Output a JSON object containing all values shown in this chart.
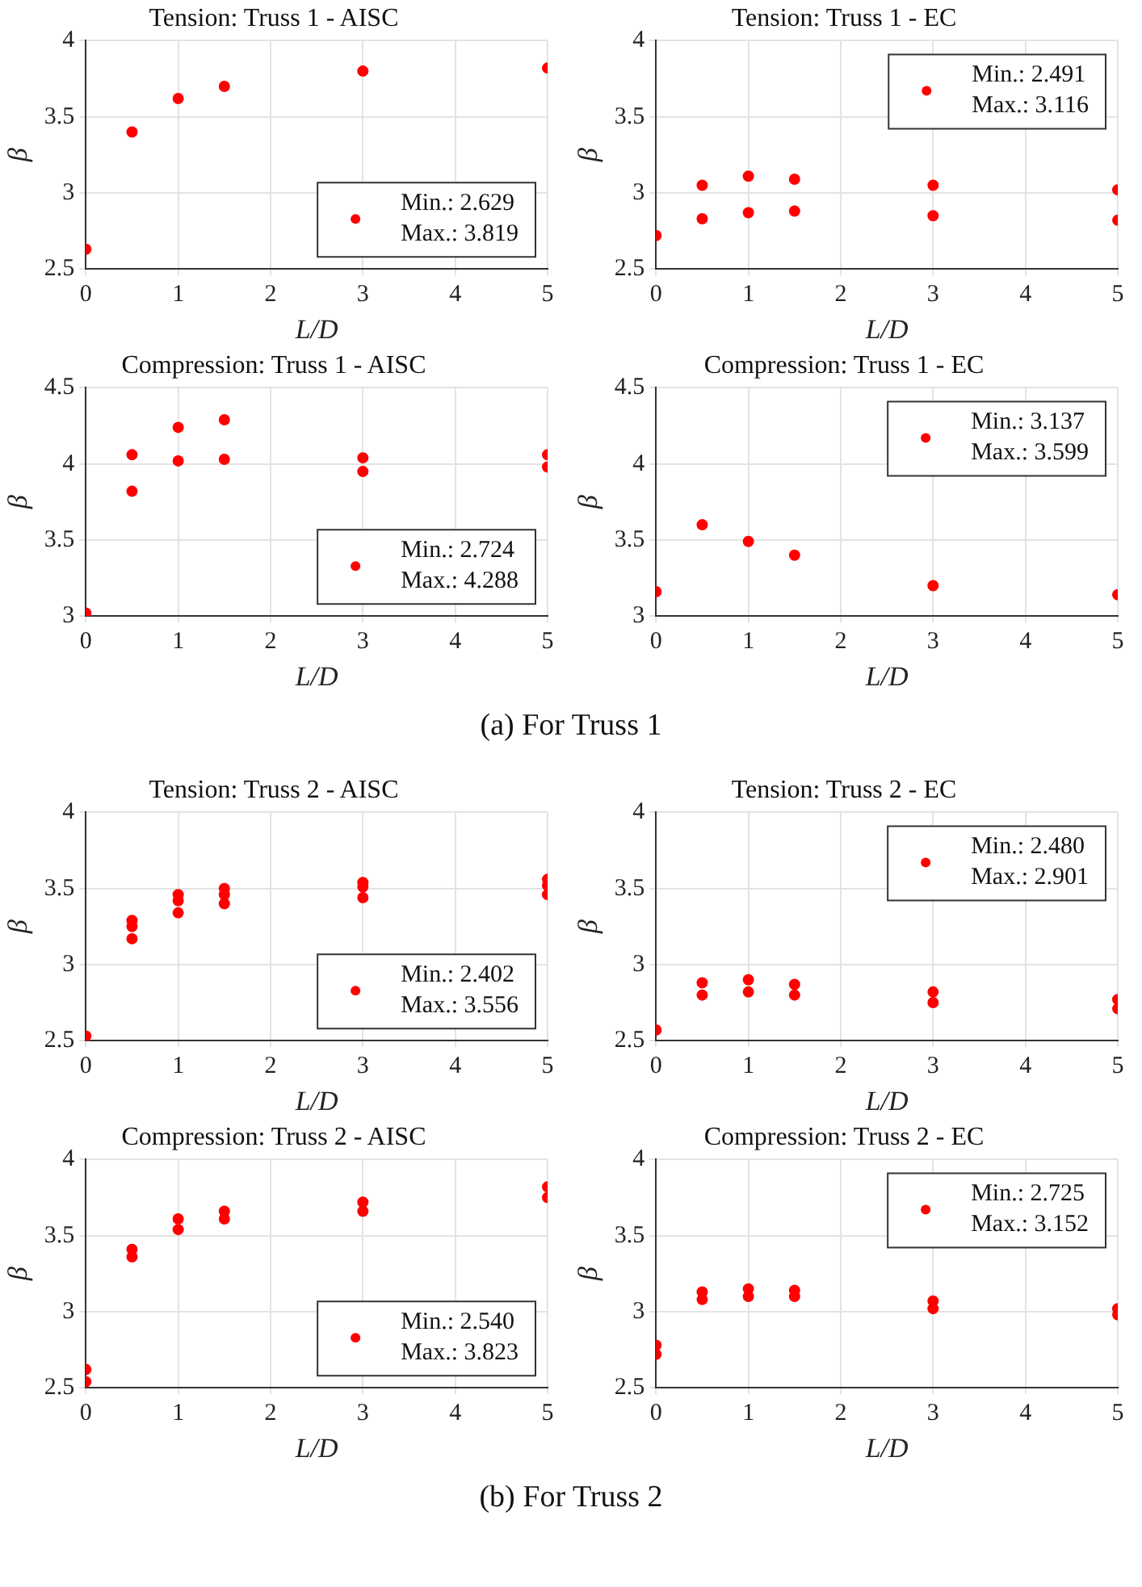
{
  "chart_data": [
    {
      "type": "scatter",
      "title": "Tension: Truss 1 - AISC",
      "xlabel": "L/D",
      "ylabel": "β",
      "xlim": [
        0,
        5
      ],
      "xticks": [
        0,
        1,
        2,
        3,
        4,
        5
      ],
      "ylim": [
        2.5,
        4
      ],
      "yticks": [
        2.5,
        3,
        3.5,
        4
      ],
      "grid": true,
      "marker": "circle",
      "legend": "bottom right",
      "series": [
        {
          "name": "Min.: 2.629\nMax.: 3.819",
          "color": "#ff0000",
          "x": [
            0,
            0.5,
            1,
            1.5,
            3,
            5
          ],
          "values": [
            2.63,
            3.4,
            3.62,
            3.7,
            3.8,
            3.82
          ]
        }
      ]
    },
    {
      "type": "scatter",
      "title": "Tension: Truss 1 - EC",
      "xlabel": "L/D",
      "ylabel": "β",
      "xlim": [
        0,
        5
      ],
      "xticks": [
        0,
        1,
        2,
        3,
        4,
        5
      ],
      "ylim": [
        2.5,
        4
      ],
      "yticks": [
        2.5,
        3,
        3.5,
        4
      ],
      "grid": true,
      "marker": "circle",
      "legend": "top right",
      "series": [
        {
          "name": "Min.: 2.491\nMax.: 3.116",
          "color": "#ff0000",
          "x": [
            0,
            0.5,
            0.5,
            1,
            1,
            1.5,
            1.5,
            3,
            3,
            5,
            5
          ],
          "values": [
            2.72,
            3.05,
            2.83,
            3.11,
            2.87,
            3.09,
            2.88,
            3.05,
            2.85,
            3.02,
            2.82
          ]
        }
      ]
    },
    {
      "type": "scatter",
      "title": "Compression: Truss 1 - AISC",
      "xlabel": "L/D",
      "ylabel": "β",
      "xlim": [
        0,
        5
      ],
      "xticks": [
        0,
        1,
        2,
        3,
        4,
        5
      ],
      "ylim": [
        3,
        4.5
      ],
      "yticks": [
        3,
        3.5,
        4,
        4.5
      ],
      "grid": true,
      "marker": "circle",
      "legend": "bottom right",
      "series": [
        {
          "name": "Min.: 2.724\nMax.: 4.288",
          "color": "#ff0000",
          "x": [
            0,
            0.5,
            0.5,
            1,
            1,
            1.5,
            1.5,
            3,
            3,
            5,
            5
          ],
          "values": [
            3.02,
            4.06,
            3.82,
            4.24,
            4.02,
            4.29,
            4.03,
            4.04,
            3.95,
            4.06,
            3.98
          ]
        }
      ]
    },
    {
      "type": "scatter",
      "title": "Compression: Truss 1 - EC",
      "xlabel": "L/D",
      "ylabel": "β",
      "xlim": [
        0,
        5
      ],
      "xticks": [
        0,
        1,
        2,
        3,
        4,
        5
      ],
      "ylim": [
        3,
        4.5
      ],
      "yticks": [
        3,
        3.5,
        4,
        4.5
      ],
      "grid": true,
      "marker": "circle",
      "legend": "top right",
      "annotations": [
        "(a)  For Truss 1"
      ],
      "series": [
        {
          "name": "Min.: 3.137\nMax.: 3.599",
          "color": "#ff0000",
          "x": [
            0,
            0.5,
            1,
            1.5,
            3,
            5
          ],
          "values": [
            3.16,
            3.6,
            3.49,
            3.4,
            3.2,
            3.14
          ]
        }
      ]
    },
    {
      "type": "scatter",
      "title": "Tension: Truss 2 - AISC",
      "xlabel": "L/D",
      "ylabel": "β",
      "xlim": [
        0,
        5
      ],
      "xticks": [
        0,
        1,
        2,
        3,
        4,
        5
      ],
      "ylim": [
        2.5,
        4
      ],
      "yticks": [
        2.5,
        3,
        3.5,
        4
      ],
      "grid": true,
      "marker": "circle",
      "legend": "bottom right",
      "series": [
        {
          "name": "Min.: 2.402\nMax.: 3.556",
          "color": "#ff0000",
          "x": [
            0,
            0.5,
            0.5,
            0.5,
            1,
            1,
            1,
            1.5,
            1.5,
            1.5,
            3,
            3,
            3,
            5,
            5,
            5
          ],
          "values": [
            2.53,
            3.29,
            3.25,
            3.17,
            3.46,
            3.42,
            3.34,
            3.5,
            3.46,
            3.4,
            3.54,
            3.51,
            3.44,
            3.56,
            3.52,
            3.46
          ]
        }
      ]
    },
    {
      "type": "scatter",
      "title": "Tension: Truss 2 - EC",
      "xlabel": "L/D",
      "ylabel": "β",
      "xlim": [
        0,
        5
      ],
      "xticks": [
        0,
        1,
        2,
        3,
        4,
        5
      ],
      "ylim": [
        2.5,
        4
      ],
      "yticks": [
        2.5,
        3,
        3.5,
        4
      ],
      "grid": true,
      "marker": "circle",
      "legend": "top right",
      "series": [
        {
          "name": "Min.: 2.480\nMax.: 2.901",
          "color": "#ff0000",
          "x": [
            0,
            0.5,
            0.5,
            1,
            1,
            1.5,
            1.5,
            3,
            3,
            5,
            5
          ],
          "values": [
            2.57,
            2.88,
            2.8,
            2.9,
            2.82,
            2.87,
            2.8,
            2.82,
            2.75,
            2.77,
            2.71
          ]
        }
      ]
    },
    {
      "type": "scatter",
      "title": "Compression: Truss 2 - AISC",
      "xlabel": "L/D",
      "ylabel": "β",
      "xlim": [
        0,
        5
      ],
      "xticks": [
        0,
        1,
        2,
        3,
        4,
        5
      ],
      "ylim": [
        2.5,
        4
      ],
      "yticks": [
        2.5,
        3,
        3.5,
        4
      ],
      "grid": true,
      "marker": "circle",
      "legend": "bottom right",
      "series": [
        {
          "name": "Min.: 2.540\nMax.: 3.823",
          "color": "#ff0000",
          "x": [
            0,
            0,
            0.5,
            0.5,
            1,
            1,
            1.5,
            1.5,
            3,
            3,
            5,
            5
          ],
          "values": [
            2.62,
            2.54,
            3.41,
            3.36,
            3.61,
            3.54,
            3.66,
            3.61,
            3.72,
            3.66,
            3.82,
            3.75
          ]
        }
      ]
    },
    {
      "type": "scatter",
      "title": "Compression: Truss 2 - EC",
      "xlabel": "L/D",
      "ylabel": "β",
      "xlim": [
        0,
        5
      ],
      "xticks": [
        0,
        1,
        2,
        3,
        4,
        5
      ],
      "ylim": [
        2.5,
        4
      ],
      "yticks": [
        2.5,
        3,
        3.5,
        4
      ],
      "grid": true,
      "marker": "circle",
      "legend": "top right",
      "annotations": [
        "(b)  For Truss 2"
      ],
      "series": [
        {
          "name": "Min.: 2.725\nMax.: 3.152",
          "color": "#ff0000",
          "x": [
            0,
            0,
            0.5,
            0.5,
            1,
            1,
            1.5,
            1.5,
            3,
            3,
            5,
            5
          ],
          "values": [
            2.78,
            2.72,
            3.13,
            3.08,
            3.15,
            3.1,
            3.14,
            3.1,
            3.07,
            3.02,
            3.02,
            2.98
          ]
        }
      ]
    }
  ]
}
